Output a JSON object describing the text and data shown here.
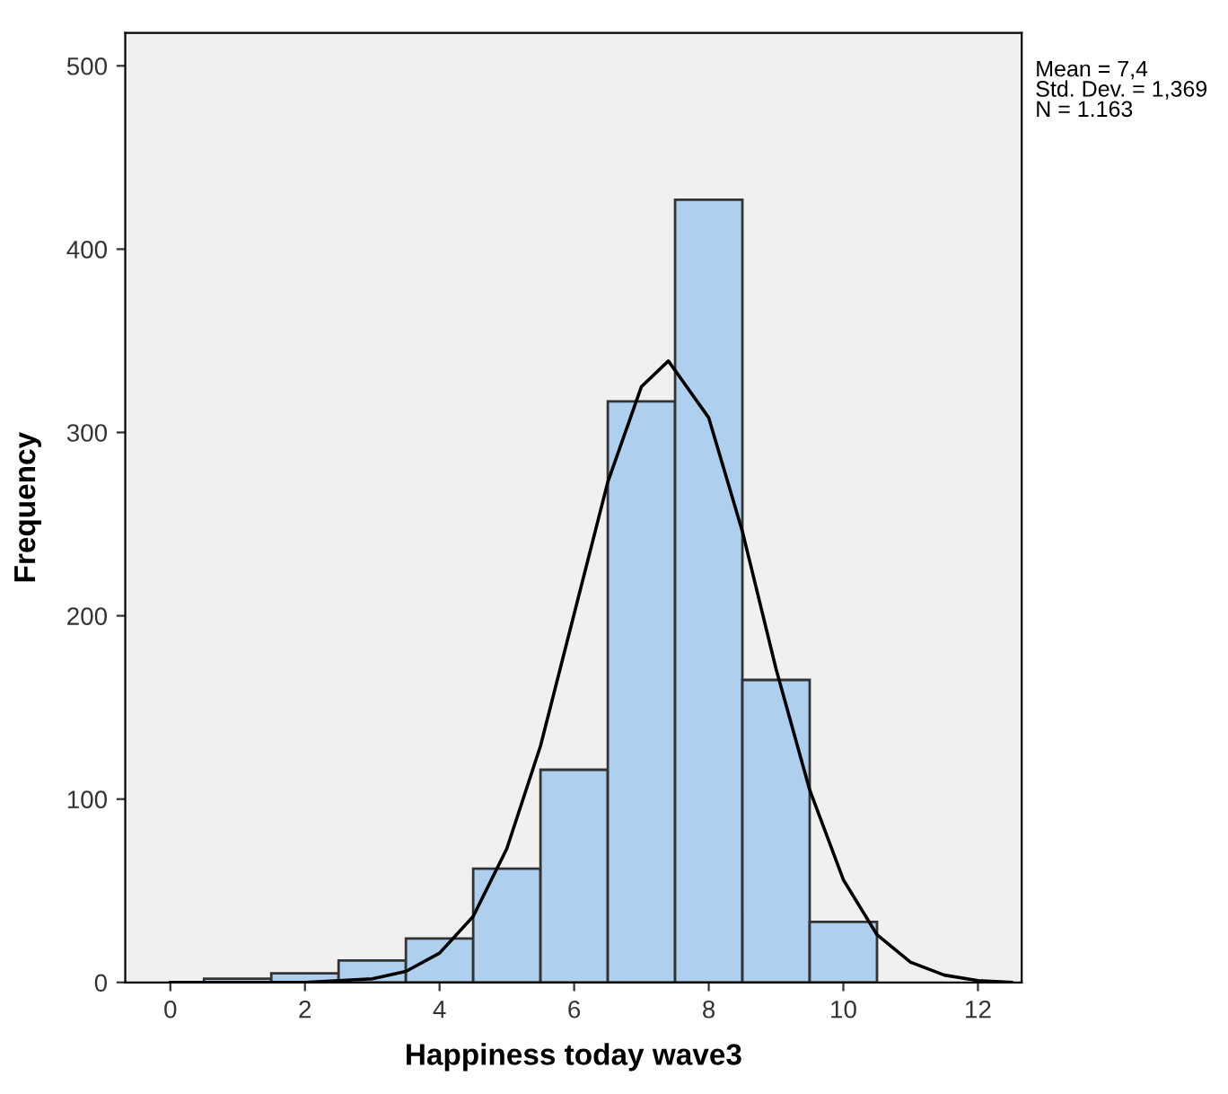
{
  "chart_data": {
    "type": "histogram",
    "xlabel": "Happiness today wave3",
    "ylabel": "Frequency",
    "bins": [
      0.5,
      1.5,
      2.5,
      3.5,
      4.5,
      5.5,
      6.5,
      7.5,
      8.5,
      9.5,
      10.5
    ],
    "values": [
      2,
      5,
      12,
      24,
      62,
      116,
      317,
      427,
      165,
      33
    ],
    "color": "#aecfee",
    "series": [
      {
        "type": "line",
        "color": "#000000",
        "x": [
          0,
          1,
          2,
          3,
          3.5,
          4,
          4.5,
          5,
          5.5,
          6,
          6.5,
          7,
          7.4,
          8,
          8.5,
          9,
          9.5,
          10,
          10.5,
          11,
          11.5,
          12,
          12.5
        ],
        "values": [
          0,
          0,
          0,
          2,
          6,
          16,
          36,
          73,
          129,
          201,
          273,
          325,
          339,
          308,
          246,
          171,
          105,
          56,
          26,
          11,
          4,
          1,
          0
        ]
      }
    ],
    "xlim": [
      -0.67,
      12.65
    ],
    "xticks": [
      0,
      2,
      4,
      6,
      8,
      10,
      12
    ],
    "ylim": [
      0,
      518
    ],
    "yticks": [
      0,
      100,
      200,
      300,
      400,
      500
    ],
    "grid": false,
    "legend": false,
    "annotations": [
      "Mean = 7,4\nStd. Dev. = 1,369\nN = 1.163"
    ]
  }
}
